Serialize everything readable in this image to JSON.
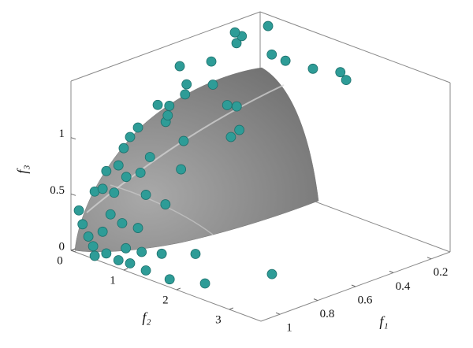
{
  "chart_data": {
    "type": "scatter3d",
    "x_label": "f₁",
    "y_label": "f₂",
    "z_label": "f₃",
    "color": "#2e9c97",
    "xlim": [
      0.1,
      1.1
    ],
    "xticks": [
      0.2,
      0.4,
      0.6,
      0.8,
      1
    ],
    "ylim": [
      0,
      3.6
    ],
    "yticks": [
      0,
      1,
      2,
      3
    ],
    "zlim": [
      0,
      1.5
    ],
    "zticks": [
      0,
      0.5,
      1
    ],
    "x": [
      1.1,
      1.1,
      1.1,
      1.1,
      1.1,
      1.1,
      1.1,
      1.1,
      1.1,
      1.1,
      1.1,
      1.1,
      1.1,
      1.1,
      1.1,
      1.1,
      1.1,
      1.1,
      1.1,
      1.1,
      1.1,
      1.1,
      1.1,
      1.1,
      1.1,
      0.6,
      0.7,
      0.55,
      0.4,
      0.5,
      0.4,
      0.25,
      0.25,
      0.25,
      0.1,
      0.1,
      0.1,
      0.1,
      0.1,
      0.1,
      1.0,
      0.5,
      0.5,
      0.5,
      0.5,
      0.8,
      0.8,
      0.8,
      0.9,
      0.9,
      1.0,
      1.0,
      0.7,
      0.7,
      1.1,
      1.1,
      1.1
    ],
    "y": [
      0.15,
      0.22,
      0.33,
      0.42,
      0.45,
      0.67,
      0.9,
      1.12,
      1.42,
      1.72,
      1.87,
      2.54,
      2.36,
      1.79,
      1.42,
      1.27,
      0.97,
      0.75,
      0.45,
      0.6,
      0.67,
      0.9,
      1.0,
      1.12,
      1.27,
      0.37,
      0.21,
      0.09,
      0.15,
      0.04,
      0.18,
      0.09,
      0.19,
      0.06,
      0.15,
      0.22,
      0.48,
      1.0,
      1.52,
      1.63,
      3.45,
      0.99,
      0.81,
      1.04,
      0.88,
      1.06,
      1.01,
      0.72,
      0.78,
      0.6,
      0.69,
      0.46,
      0.43,
      0.4,
      1.34,
      1.04,
      0.6
    ],
    "z": [
      0.38,
      0.27,
      0.18,
      0.11,
      0.03,
      0.09,
      0.07,
      0.08,
      0.07,
      0.27,
      0.07,
      0.15,
      0.38,
      0.72,
      0.74,
      0.42,
      0.41,
      0.45,
      0.6,
      0.65,
      0.82,
      0.91,
      1.08,
      1.2,
      1.31,
      1.14,
      1.08,
      1.31,
      1.27,
      1.11,
      1.07,
      1.33,
      1.41,
      1.42,
      1.4,
      1.16,
      1.15,
      1.17,
      1.23,
      1.18,
      0.33,
      1.08,
      1.06,
      0.88,
      0.79,
      0.97,
      0.71,
      1.08,
      0.84,
      0.67,
      0.71,
      0.53,
      1.11,
      1.02,
      0.22,
      0.2,
      0.27
    ]
  }
}
